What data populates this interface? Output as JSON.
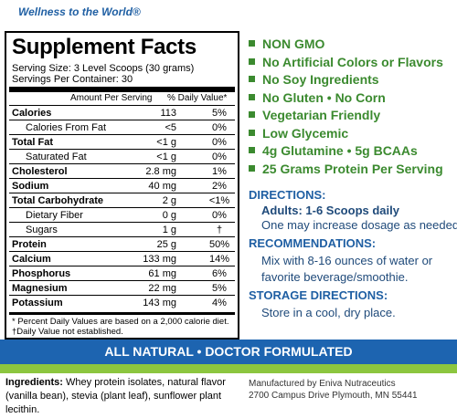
{
  "header": {
    "tagline": "Wellness to the World®"
  },
  "facts": {
    "title": "Supplement Facts",
    "serving_size": "Serving Size: 3 Level Scoops (30 grams)",
    "servings_per_container": "Servings Per Container: 30",
    "column_headers": [
      "Amount Per Serving",
      "% Daily Value*"
    ],
    "rows": [
      [
        "Calories",
        "113",
        "5%"
      ],
      [
        "Calories From Fat",
        "<5",
        "0%"
      ],
      [
        "Total Fat",
        "<1 g",
        "0%"
      ],
      [
        "Saturated Fat",
        "<1 g",
        "0%"
      ],
      [
        "Cholesterol",
        "2.8 mg",
        "1%"
      ],
      [
        "Sodium",
        "40 mg",
        "2%"
      ],
      [
        "Total Carbohydrate",
        "2 g",
        "<1%"
      ],
      [
        "Dietary Fiber",
        "0 g",
        "0%"
      ],
      [
        "Sugars",
        "1 g",
        "†"
      ],
      [
        "Protein",
        "25 g",
        "50%"
      ],
      [
        "Calcium",
        "133 mg",
        "14%"
      ],
      [
        "Phosphorus",
        "61 mg",
        "6%"
      ],
      [
        "Magnesium",
        "22 mg",
        "5%"
      ],
      [
        "Potassium",
        "143 mg",
        "4%"
      ]
    ],
    "footnotes": [
      "* Percent Daily Values are based on a 2,000 calorie diet.",
      "†Daily Value not established."
    ]
  },
  "features": [
    "NON GMO",
    "No Artificial Colors or Flavors",
    "No Soy Ingredients",
    "No Gluten • No Corn",
    "Vegetarian Friendly",
    "Low Glycemic",
    "4g Glutamine • 5g BCAAs",
    "25 Grams Protein Per Serving"
  ],
  "directions": {
    "heading": "DIRECTIONS:",
    "lines": [
      "Adults: 1-6 Scoops daily",
      "One may increase dosage as needed."
    ]
  },
  "recommendations": {
    "heading": "RECOMMENDATIONS:",
    "lines": [
      "Mix with 8-16 ounces of water or",
      "favorite beverage/smoothie."
    ]
  },
  "storage": {
    "heading": "STORAGE DIRECTIONS:",
    "lines": [
      "Store in a cool, dry place."
    ]
  },
  "banner": "ALL NATURAL • DOCTOR FORMULATED",
  "ingredients": {
    "label": "Ingredients:",
    "text": "Whey protein isolates, natural flavor (vanilla bean), stevia (plant leaf), sunflower plant lecithin."
  },
  "manufacturer": [
    "Manufactured by Eniva Nutraceutics",
    "2700 Campus Drive Plymouth, MN 55441"
  ]
}
